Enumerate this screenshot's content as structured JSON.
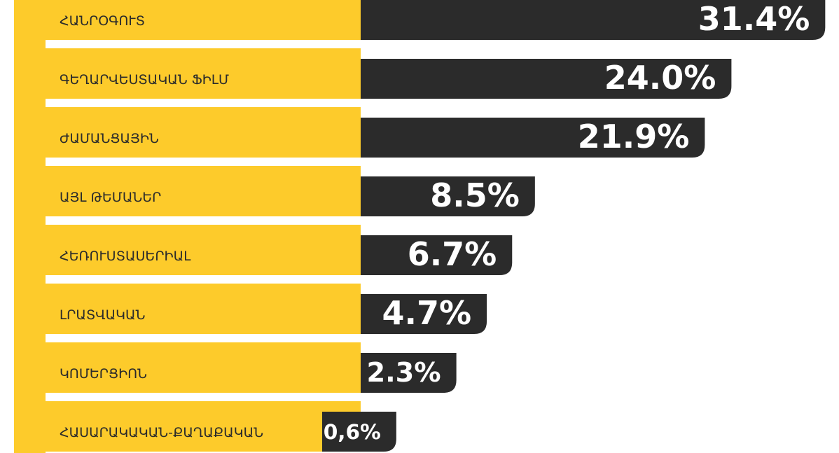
{
  "chart_data": {
    "type": "bar",
    "orientation": "horizontal",
    "categories": [
      "ՀԱՆՐՕԳՈՒՏ",
      "ԳԵՂԱՐՎԵՍՏԱԿԱՆ ՖԻԼՄ",
      "ԺԱՄԱՆՑԱՅԻՆ",
      "ԱՅԼ ԹԵՄԱՆԵՐ",
      "ՀԵՌՈՒՍՏԱՍԵՐԻԱԼ",
      "ԼՐԱՏՎԱԿԱՆ",
      "ԿՈՄԵՐՑԻՈՆ",
      "ՀԱՍԱՐԱԿԱԿԱՆ-ՔԱՂԱՔԱԿԱՆ"
    ],
    "values": [
      31.4,
      24.0,
      21.9,
      8.5,
      6.7,
      4.7,
      2.3,
      0.6
    ],
    "value_labels": [
      "31.4%",
      "24.0%",
      "21.9%",
      "8.5%",
      "6.7%",
      "4.7%",
      "2.3%",
      "0,6%"
    ],
    "color": "#2b2b2b",
    "label_color": "#fdcb2b"
  }
}
